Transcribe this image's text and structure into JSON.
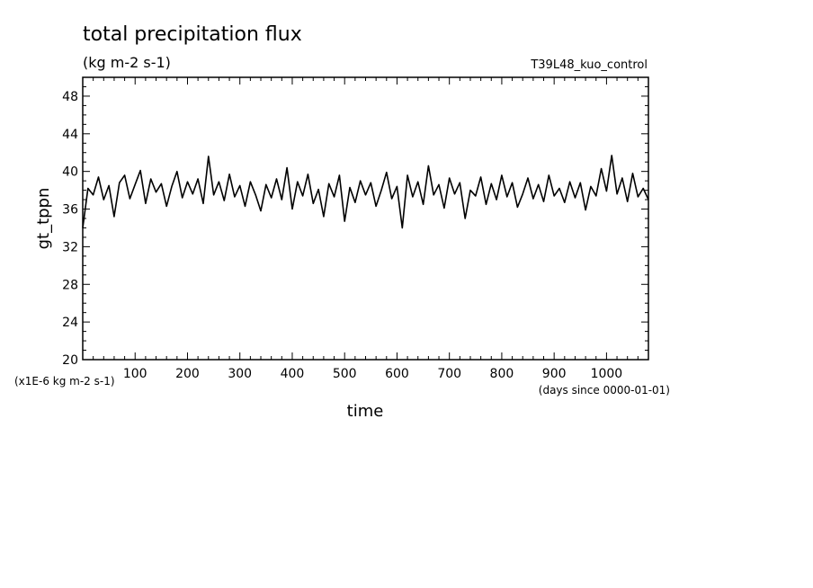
{
  "chart_data": {
    "type": "line",
    "title": "total precipitation flux",
    "units": "(kg m-2 s-1)",
    "run_label": "T39L48_kuo_control",
    "xlabel": "time",
    "ylabel": "gt_tppn",
    "x_unit_note": "(days since 0000-01-01)",
    "y_scale_note": "(x1E-6 kg m-2 s-1)",
    "xlim": [
      0,
      1080
    ],
    "ylim": [
      20,
      50
    ],
    "x_ticks": [
      100,
      200,
      300,
      400,
      500,
      600,
      700,
      800,
      900,
      1000
    ],
    "x_tick_labels": [
      "100",
      "200",
      "300",
      "400",
      "500",
      "600",
      "700",
      "800",
      "900",
      "1000"
    ],
    "y_ticks": [
      20,
      24,
      28,
      32,
      36,
      40,
      44,
      48
    ],
    "y_tick_labels": [
      "20",
      "24",
      "28",
      "32",
      "36",
      "40",
      "44",
      "48"
    ],
    "grid": false,
    "line_color": "#000000",
    "series": [
      {
        "x": [
          0,
          10,
          20,
          30,
          40,
          50,
          60,
          70,
          80,
          90,
          100,
          110,
          120,
          130,
          140,
          150,
          160,
          170,
          180,
          190,
          200,
          210,
          220,
          230,
          240,
          250,
          260,
          270,
          280,
          290,
          300,
          310,
          320,
          330,
          340,
          350,
          360,
          370,
          380,
          390,
          400,
          410,
          420,
          430,
          440,
          450,
          460,
          470,
          480,
          490,
          500,
          510,
          520,
          530,
          540,
          550,
          560,
          570,
          580,
          590,
          600,
          610,
          620,
          630,
          640,
          650,
          660,
          670,
          680,
          690,
          700,
          710,
          720,
          730,
          740,
          750,
          760,
          770,
          780,
          790,
          800,
          810,
          820,
          830,
          840,
          850,
          860,
          870,
          880,
          890,
          900,
          910,
          920,
          930,
          940,
          950,
          960,
          970,
          980,
          990,
          1000,
          1010,
          1020,
          1030,
          1040,
          1050,
          1060,
          1070,
          1080
        ],
        "values": [
          34.0,
          38.2,
          37.5,
          39.4,
          37.0,
          38.5,
          35.2,
          38.8,
          39.6,
          37.1,
          38.6,
          40.1,
          36.6,
          39.2,
          37.8,
          38.7,
          36.3,
          38.4,
          40.0,
          37.2,
          38.9,
          37.6,
          39.2,
          36.6,
          41.6,
          37.5,
          38.9,
          36.9,
          39.7,
          37.3,
          38.5,
          36.3,
          38.9,
          37.5,
          35.8,
          38.6,
          37.2,
          39.2,
          37.0,
          40.4,
          36.0,
          38.9,
          37.4,
          39.7,
          36.6,
          38.1,
          35.2,
          38.7,
          37.3,
          39.6,
          34.7,
          38.3,
          36.7,
          39.0,
          37.5,
          38.8,
          36.3,
          38.0,
          39.9,
          37.1,
          38.4,
          34.0,
          39.6,
          37.3,
          38.9,
          36.5,
          40.6,
          37.5,
          38.6,
          36.1,
          39.3,
          37.6,
          38.8,
          35.0,
          38.0,
          37.4,
          39.4,
          36.5,
          38.7,
          37.0,
          39.6,
          37.3,
          38.8,
          36.2,
          37.6,
          39.3,
          37.1,
          38.6,
          36.8,
          39.6,
          37.4,
          38.2,
          36.7,
          38.9,
          37.2,
          38.8,
          35.9,
          38.4,
          37.4,
          40.3,
          37.9,
          41.7,
          37.6,
          39.3,
          36.8,
          39.8,
          37.3,
          38.2,
          37.0
        ]
      }
    ]
  }
}
